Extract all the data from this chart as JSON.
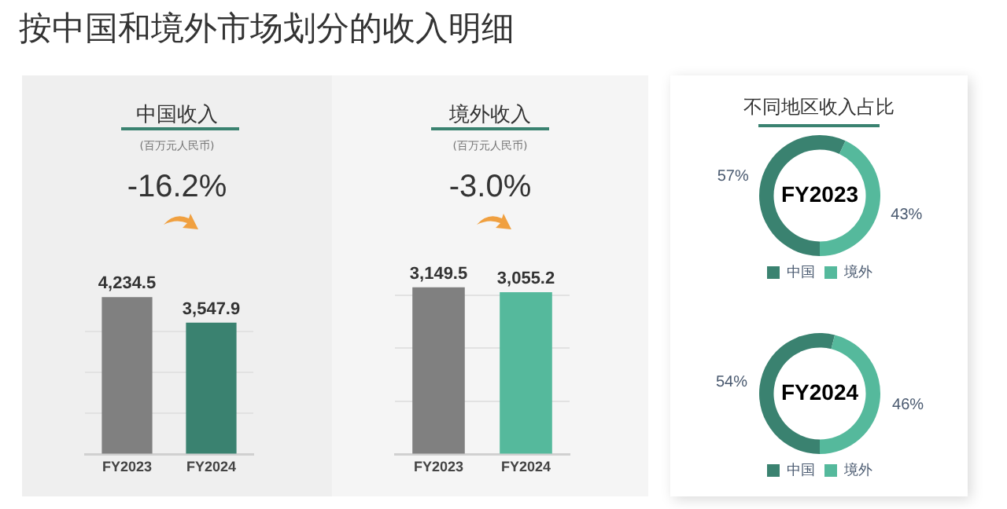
{
  "chart_data": [
    {
      "type": "other",
      "title": "按中国和境外市场划分的收入明细"
    },
    {
      "type": "bar",
      "title": "中国收入",
      "subtitle": "(百万元人民币)",
      "annotations": [
        "-16.2%"
      ],
      "categories": [
        "FY2023",
        "FY2024"
      ],
      "values": [
        4234.5,
        3547.9
      ],
      "colors": [
        "#808080",
        "#3a8270"
      ],
      "value_labels": [
        "4,234.5",
        "3,547.9"
      ],
      "yticks": [
        {
          "value": 0,
          "label": null
        },
        {
          "value": 1100,
          "label": null
        },
        {
          "value": 2200,
          "label": null
        },
        {
          "value": 3300,
          "label": null
        }
      ],
      "grid": "y",
      "tick_labels": "x"
    },
    {
      "type": "bar",
      "title": "境外收入",
      "subtitle": "(百万元人民币)",
      "annotations": [
        "-3.0%"
      ],
      "categories": [
        "FY2023",
        "FY2024"
      ],
      "values": [
        3149.5,
        3055.2
      ],
      "colors": [
        "#808080",
        "#55b99c"
      ],
      "value_labels": [
        "3,149.5",
        "3,055.2"
      ],
      "yticks": [
        {
          "value": 0,
          "label": null
        },
        {
          "value": 1000,
          "label": null
        },
        {
          "value": 2000,
          "label": null
        },
        {
          "value": 3000,
          "label": null
        }
      ],
      "grid": "y",
      "tick_labels": "x"
    },
    {
      "type": "donut",
      "title": "不同地区收入占比",
      "annotations": [
        "FY2023"
      ],
      "categories": [
        "中国",
        "境外"
      ],
      "values": [
        57,
        43
      ],
      "colors": [
        "#3a8270",
        "#55b99c"
      ],
      "value_labels": [
        "57%",
        "43%"
      ],
      "legend": "bottom"
    },
    {
      "type": "donut",
      "annotations": [
        "FY2024"
      ],
      "categories": [
        "中国",
        "境外"
      ],
      "values": [
        54,
        46
      ],
      "colors": [
        "#3a8270",
        "#55b99c"
      ],
      "value_labels": [
        "54%",
        "46%"
      ],
      "legend": "bottom"
    }
  ]
}
